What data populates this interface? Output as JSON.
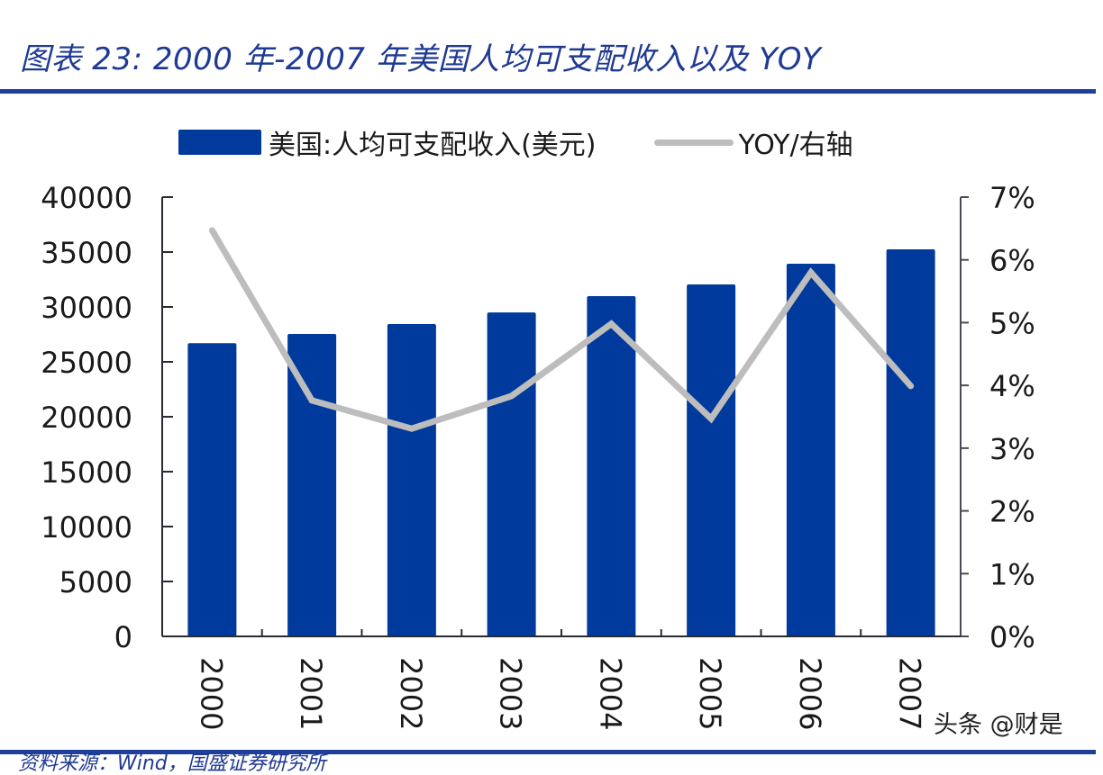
{
  "title": "图表 23:  2000 年-2007 年美国人均可支配收入以及 YOY",
  "legend": {
    "bar_label": "美国:人均可支配收入(美元)",
    "line_label": "YOY/右轴"
  },
  "watermark": "头条 @财是",
  "footer": "资料来源：Wind，国盛证券研究所",
  "colors": {
    "bar": "#003a9c",
    "line": "#bdbdbd",
    "rule": "#1f3f9a",
    "title": "#1f3a93"
  },
  "chart_data": {
    "type": "bar+line",
    "title": "2000 年-2007 年美国人均可支配收入以及 YOY",
    "categories": [
      "2000",
      "2001",
      "2002",
      "2003",
      "2004",
      "2005",
      "2006",
      "2007"
    ],
    "series": [
      {
        "name": "美国:人均可支配收入(美元)",
        "type": "bar",
        "axis": "left",
        "values": [
          26700,
          27540,
          28440,
          29500,
          30980,
          32050,
          33930,
          35250
        ]
      },
      {
        "name": "YOY/右轴",
        "type": "line",
        "axis": "right",
        "values": [
          6.47,
          3.76,
          3.31,
          3.83,
          4.98,
          3.47,
          5.8,
          3.99
        ],
        "unit": "%"
      }
    ],
    "left_axis": {
      "ylim": [
        0,
        40000
      ],
      "ticks": [
        "0",
        "5000",
        "10000",
        "15000",
        "20000",
        "25000",
        "30000",
        "35000",
        "40000"
      ]
    },
    "right_axis": {
      "ylim": [
        0,
        7
      ],
      "ticks": [
        "0%",
        "1%",
        "2%",
        "3%",
        "4%",
        "5%",
        "6%",
        "7%"
      ]
    },
    "xlabel": "",
    "ylabel": "",
    "grid": false,
    "legend_position": "top"
  }
}
